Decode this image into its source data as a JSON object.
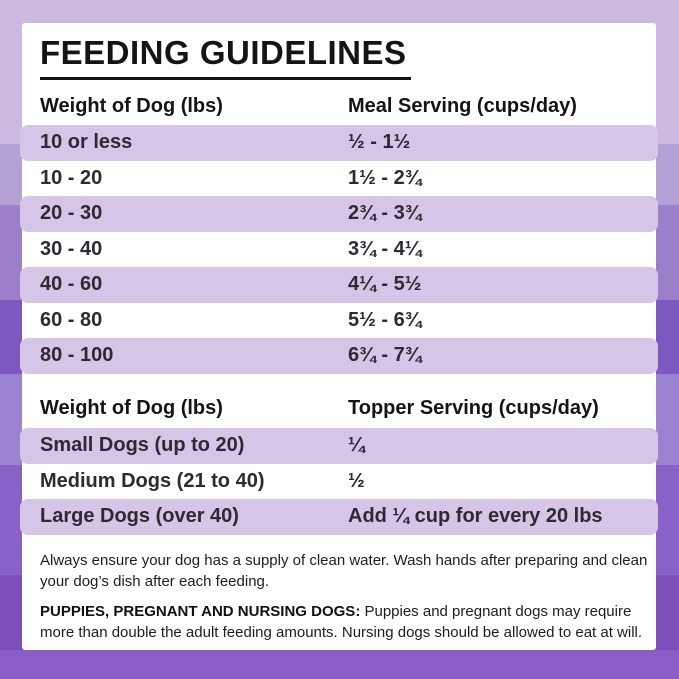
{
  "title": "FEEDING GUIDELINES",
  "meal_table": {
    "header": {
      "col1": "Weight of Dog (lbs)",
      "col2": "Meal Serving (cups/day)"
    },
    "rows": [
      {
        "weight": "10 or less",
        "serving": "½ - 1½"
      },
      {
        "weight": "10 - 20",
        "serving": "1½ - 2¾"
      },
      {
        "weight": "20 - 30",
        "serving": "2¾ - 3¾"
      },
      {
        "weight": "30 - 40",
        "serving": "3¾ - 4¼"
      },
      {
        "weight": "40 - 60",
        "serving": "4¼ - 5½"
      },
      {
        "weight": "60 - 80",
        "serving": "5½ - 6¾"
      },
      {
        "weight": "80 - 100",
        "serving": "6¾ - 7¾"
      }
    ]
  },
  "topper_table": {
    "header": {
      "col1": "Weight of Dog (lbs)",
      "col2": "Topper Serving (cups/day)"
    },
    "rows": [
      {
        "weight": "Small Dogs (up to 20)",
        "serving": "¼"
      },
      {
        "weight": "Medium Dogs (21 to 40)",
        "serving": "½"
      },
      {
        "weight": "Large Dogs (over 40)",
        "serving": "Add ¼ cup for every 20 lbs"
      }
    ]
  },
  "footnotes": {
    "water": "Always ensure your dog has a supply of clean water. Wash hands after preparing and clean\nyour dog’s dish after each feeding.",
    "puppies_label": "PUPPIES, PREGNANT AND NURSING DOGS:",
    "puppies_text": " Puppies and pregnant dogs may require\nmore than double the adult feeding amounts. Nursing dogs should be allowed to eat at will."
  },
  "theme": {
    "band1": "#cbb9e0",
    "band2": "#b3a0d4",
    "band3": "#9b80c9",
    "band4": "#7d59bf",
    "band5": "#9c83d2",
    "band6": "#8a61c6",
    "band7": "#7c50bb",
    "band8": "#8a5ec4",
    "card": "#ffffff",
    "row_shade": "#d5c5e7",
    "ink": "#141414",
    "row_ink": "#2e2933"
  }
}
